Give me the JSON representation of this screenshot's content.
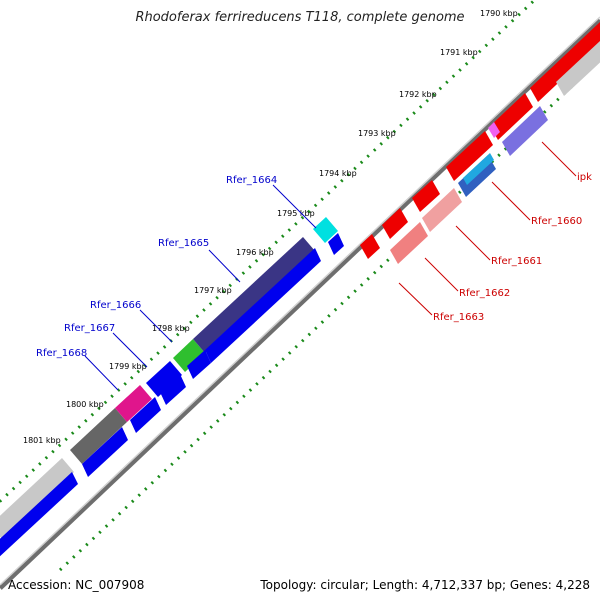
{
  "title": "Rhodoferax ferrireducens T118, complete genome",
  "footer": {
    "accession": "Accession: NC_007908",
    "summary": "Topology: circular; Length: 4,712,337 bp; Genes: 4,228"
  },
  "colors": {
    "tick": "#1a8a1a",
    "backbone": "#7a7a7a",
    "blue_label": "#0000cc",
    "red_label": "#cc0000"
  },
  "kbp_labels": [
    "1790 kbp",
    "1791 kbp",
    "1792 kbp",
    "1793 kbp",
    "1794 kbp",
    "1795 kbp",
    "1796 kbp",
    "1797 kbp",
    "1798 kbp",
    "1799 kbp",
    "1800 kbp",
    "1801 kbp"
  ],
  "gene_labels_left": [
    "Rfer_1664",
    "Rfer_1665",
    "Rfer_1666",
    "Rfer_1667",
    "Rfer_1668"
  ],
  "gene_labels_right": [
    "ipk",
    "Rfer_1660",
    "Rfer_1661",
    "Rfer_1662",
    "Rfer_1663"
  ]
}
